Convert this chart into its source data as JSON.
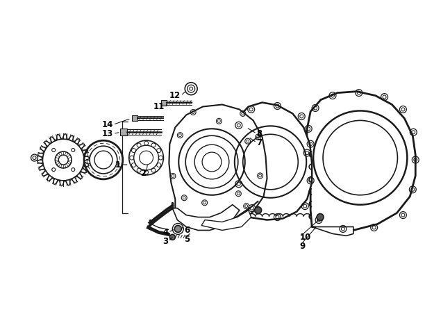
{
  "background_color": "#ffffff",
  "line_color": "#1a1a1a",
  "label_color": "#000000",
  "font_size_labels": 8.5,
  "figsize": [
    6.12,
    4.75
  ],
  "dpi": 100,
  "xlim": [
    0,
    612
  ],
  "ylim": [
    0,
    475
  ]
}
